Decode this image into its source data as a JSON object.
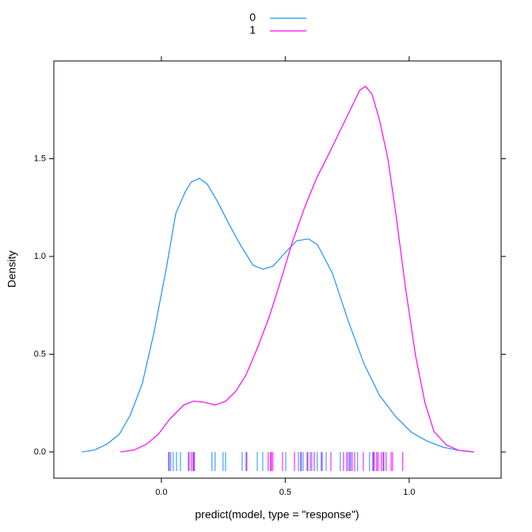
{
  "chart_data": {
    "type": "density",
    "x_label": "predict(model, type = \"response\")",
    "y_label": "Density",
    "xlim": [
      -0.434,
      1.371
    ],
    "ylim": [
      -0.134,
      2.0
    ],
    "xticks": [
      {
        "value": 0,
        "label": "0.0"
      },
      0.5,
      {
        "value": 1,
        "label": "1.0"
      }
    ],
    "yticks": [
      {
        "value": 0,
        "label": "0.0"
      },
      0.5,
      {
        "value": 1,
        "label": "1.0"
      },
      1.5
    ],
    "legend": "top",
    "series": [
      {
        "name": "0",
        "color": "#1e90ff",
        "x": [
          -0.32,
          -0.27,
          -0.22,
          -0.17,
          -0.125,
          -0.077,
          -0.03,
          0.02,
          0.058,
          0.096,
          0.12,
          0.153,
          0.185,
          0.227,
          0.275,
          0.323,
          0.37,
          0.41,
          0.45,
          0.5,
          0.546,
          0.594,
          0.63,
          0.69,
          0.754,
          0.818,
          0.88,
          0.946,
          1.01,
          1.07,
          1.137,
          1.2,
          1.26
        ],
        "values": [
          0,
          0.01,
          0.04,
          0.09,
          0.19,
          0.35,
          0.61,
          0.94,
          1.22,
          1.33,
          1.38,
          1.4,
          1.37,
          1.28,
          1.16,
          1.05,
          0.955,
          0.935,
          0.95,
          1.02,
          1.08,
          1.09,
          1.06,
          0.915,
          0.67,
          0.45,
          0.29,
          0.18,
          0.1,
          0.057,
          0.024,
          0.008,
          0
        ],
        "rug": [
          0.029,
          0.038,
          0.048,
          0.061,
          0.077,
          0.109,
          0.134,
          0.204,
          0.217,
          0.249,
          0.259,
          0.326,
          0.345,
          0.387,
          0.409,
          0.441,
          0.502,
          0.553,
          0.565,
          0.572,
          0.588,
          0.607,
          0.617,
          0.629,
          0.645,
          0.665,
          0.722,
          0.754,
          0.764,
          0.792,
          0.84,
          0.856,
          0.869,
          0.898
        ]
      },
      {
        "name": "1",
        "color": "#ff00ff",
        "x": [
          -0.166,
          -0.11,
          -0.06,
          -0.013,
          0.035,
          0.09,
          0.13,
          0.17,
          0.217,
          0.26,
          0.3,
          0.34,
          0.387,
          0.435,
          0.48,
          0.53,
          0.578,
          0.626,
          0.674,
          0.72,
          0.77,
          0.8,
          0.824,
          0.85,
          0.88,
          0.914,
          0.946,
          0.984,
          1.026,
          1.064,
          1.1,
          1.15,
          1.2,
          1.26
        ],
        "values": [
          0,
          0.01,
          0.04,
          0.09,
          0.17,
          0.24,
          0.26,
          0.255,
          0.24,
          0.26,
          0.31,
          0.39,
          0.53,
          0.69,
          0.87,
          1.08,
          1.25,
          1.4,
          1.52,
          1.64,
          1.77,
          1.85,
          1.87,
          1.83,
          1.7,
          1.5,
          1.22,
          0.85,
          0.49,
          0.25,
          0.105,
          0.036,
          0.008,
          0
        ],
        "rug": [
          0.032,
          0.112,
          0.121,
          0.128,
          0.131,
          0.342,
          0.431,
          0.441,
          0.444,
          0.45,
          0.489,
          0.537,
          0.562,
          0.591,
          0.601,
          0.617,
          0.649,
          0.684,
          0.735,
          0.748,
          0.76,
          0.77,
          0.78,
          0.815,
          0.853,
          0.859,
          0.869,
          0.875,
          0.888,
          0.895,
          0.907,
          0.927,
          0.933,
          0.974
        ]
      }
    ]
  }
}
